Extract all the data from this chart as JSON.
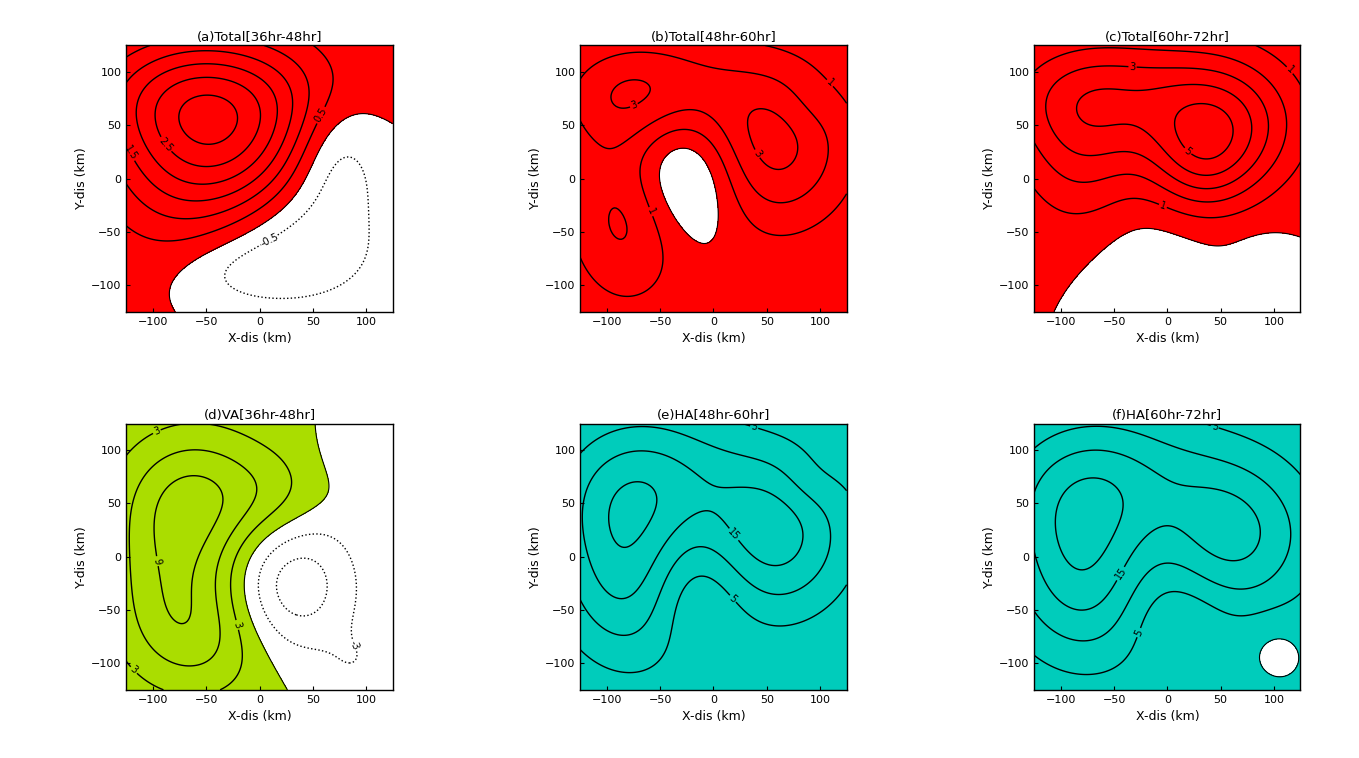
{
  "titles": [
    "(a)Total[36hr-48hr]",
    "(b)Total[48hr-60hr]",
    "(c)Total[60hr-72hr]",
    "(d)VA[36hr-48hr]",
    "(e)HA[48hr-60hr]",
    "(f)HA[60hr-72hr]"
  ],
  "xlabel": "X-dis (km)",
  "ylabel": "Y-dis (km)",
  "xlim": [
    -125,
    125
  ],
  "ylim": [
    -125,
    125
  ],
  "xticks": [
    -100,
    -50,
    0,
    50,
    100
  ],
  "yticks": [
    -100,
    -50,
    0,
    50,
    100
  ],
  "top_fill_color": "#FF0000",
  "bottom_left_fill_color": "#AADD00",
  "bottom_mid_fill_color": "#00CCBB",
  "bottom_right_fill_color": "#00CCBB",
  "figsize": [
    13.59,
    7.58
  ],
  "dpi": 100
}
